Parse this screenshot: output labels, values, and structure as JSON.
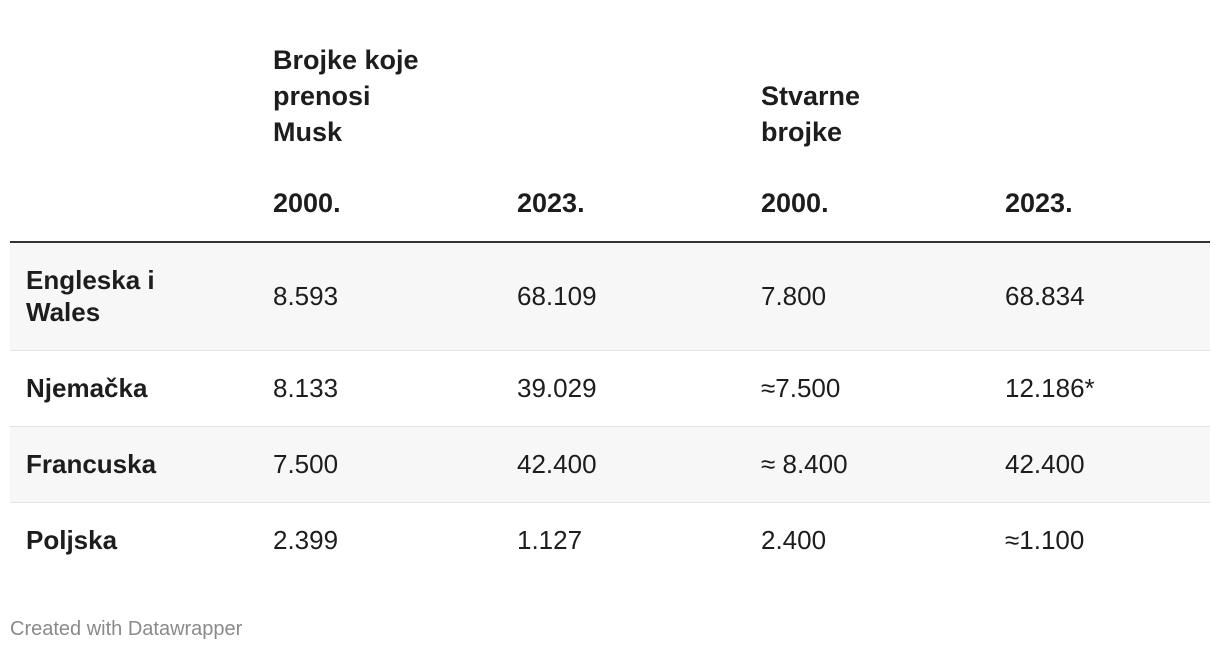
{
  "chart_data": {
    "type": "table",
    "column_groups": [
      {
        "label": "",
        "span": 1
      },
      {
        "label": "Brojke koje prenosi Musk",
        "span": 2
      },
      {
        "label": "Stvarne brojke",
        "span": 2
      }
    ],
    "columns": [
      "",
      "2000.",
      "2023.",
      "2000.",
      "2023."
    ],
    "rows": [
      {
        "label": "Engleska i Wales",
        "values": [
          "8.593",
          "68.109",
          "7.800",
          "68.834"
        ]
      },
      {
        "label": "Njemačka",
        "values": [
          "8.133",
          "39.029",
          "≈7.500",
          "12.186*"
        ]
      },
      {
        "label": "Francuska",
        "values": [
          "7.500",
          "42.400",
          "≈ 8.400",
          "42.400"
        ]
      },
      {
        "label": "Poljska",
        "values": [
          "2.399",
          "1.127",
          "2.400",
          "≈1.100"
        ]
      }
    ]
  },
  "footer": {
    "credit": "Created with Datawrapper"
  }
}
